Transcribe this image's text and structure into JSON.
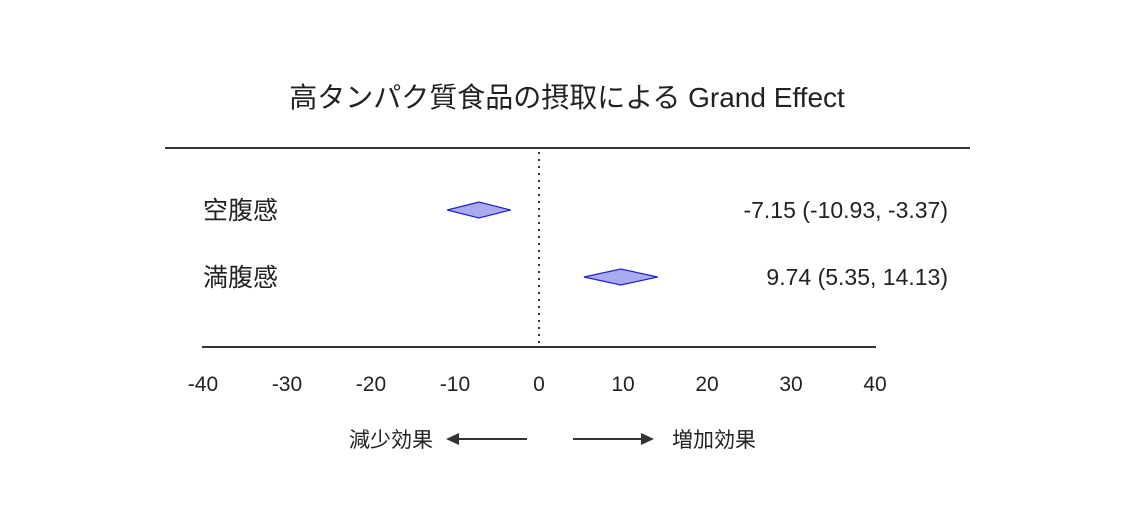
{
  "chart_data": {
    "type": "forest",
    "title": "高タンパク質食品の摂取による Grand Effect",
    "rows": [
      {
        "label": "空腹感",
        "estimate": -7.15,
        "ci_low": -10.93,
        "ci_high": -3.37,
        "ci_text": "-7.15 (-10.93, -3.37)"
      },
      {
        "label": "満腹感",
        "estimate": 9.74,
        "ci_low": 5.35,
        "ci_high": 14.13,
        "ci_text": "9.74 (5.35, 14.13)"
      }
    ],
    "xlim": [
      -40,
      40
    ],
    "xticks": [
      -40,
      -30,
      -20,
      -10,
      0,
      10,
      20,
      30,
      40
    ],
    "xtick_labels": [
      "-40",
      "-30",
      "-20",
      "-10",
      "0",
      "10",
      "20",
      "30",
      "40"
    ],
    "reference_line": 0,
    "direction_left": "減少効果",
    "direction_right": "増加効果",
    "colors": {
      "diamond_fill": "#aaaaf0",
      "diamond_stroke": "#2222cc",
      "text": "#222222",
      "axis": "#333333"
    }
  }
}
